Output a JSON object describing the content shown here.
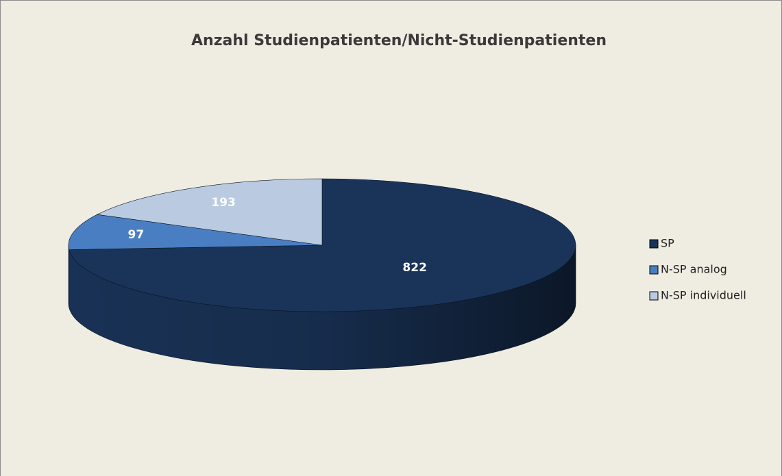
{
  "chart_data": {
    "type": "pie",
    "title": "Anzahl Studienpatienten/Nicht-Studienpatienten",
    "categories": [
      "SP",
      "N-SP analog",
      "N-SP individuell"
    ],
    "values": [
      822,
      97,
      193
    ],
    "colors": [
      "#1a3459",
      "#4a7ec2",
      "#b9cae1"
    ],
    "legend": "right"
  }
}
